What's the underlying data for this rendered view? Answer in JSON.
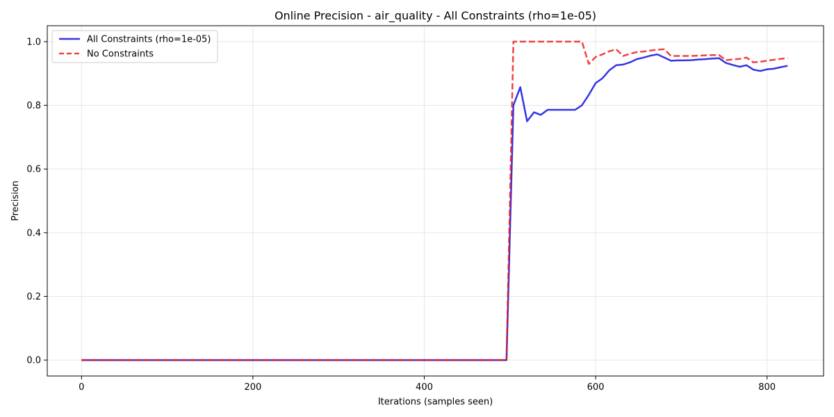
{
  "chart_data": {
    "type": "line",
    "title": "Online Precision - air_quality - All Constraints (rho=1e-05)",
    "xlabel": "Iterations (samples seen)",
    "ylabel": "Precision",
    "xlim": [
      -40,
      866
    ],
    "ylim": [
      -0.05,
      1.05
    ],
    "xticks": [
      0,
      200,
      400,
      600,
      800
    ],
    "yticks": [
      0.0,
      0.2,
      0.4,
      0.6,
      0.8,
      1.0
    ],
    "xtick_labels": [
      "0",
      "200",
      "400",
      "600",
      "800"
    ],
    "ytick_labels": [
      "0.0",
      "0.2",
      "0.4",
      "0.6",
      "0.8",
      "1.0"
    ],
    "grid": true,
    "legend_position": "upper-left",
    "series": [
      {
        "name": "All Constraints (rho=1e-05)",
        "color": "#0000dd",
        "style": "solid",
        "x": [
          0,
          496,
          504,
          512,
          520,
          528,
          536,
          544,
          552,
          560,
          568,
          576,
          584,
          592,
          600,
          608,
          616,
          624,
          632,
          640,
          648,
          656,
          664,
          672,
          680,
          688,
          696,
          704,
          712,
          720,
          728,
          736,
          744,
          752,
          760,
          768,
          776,
          784,
          792,
          800,
          808,
          816,
          824
        ],
        "y": [
          0.0,
          0.0,
          0.8,
          0.857,
          0.75,
          0.778,
          0.77,
          0.786,
          0.786,
          0.786,
          0.786,
          0.786,
          0.8,
          0.833,
          0.87,
          0.885,
          0.91,
          0.926,
          0.928,
          0.935,
          0.945,
          0.95,
          0.956,
          0.96,
          0.95,
          0.94,
          0.941,
          0.941,
          0.942,
          0.944,
          0.945,
          0.947,
          0.948,
          0.933,
          0.927,
          0.921,
          0.926,
          0.912,
          0.908,
          0.913,
          0.915,
          0.92,
          0.924
        ]
      },
      {
        "name": "No Constraints",
        "color": "#ee1111",
        "style": "dashed",
        "x": [
          0,
          496,
          504,
          512,
          520,
          528,
          536,
          544,
          552,
          560,
          568,
          576,
          584,
          592,
          600,
          608,
          616,
          624,
          632,
          640,
          648,
          656,
          664,
          672,
          680,
          688,
          696,
          704,
          712,
          720,
          728,
          736,
          744,
          752,
          760,
          768,
          776,
          784,
          792,
          800,
          808,
          816,
          824
        ],
        "y": [
          0.0,
          0.0,
          1.0,
          1.0,
          1.0,
          1.0,
          1.0,
          1.0,
          1.0,
          1.0,
          1.0,
          1.0,
          1.0,
          0.93,
          0.952,
          0.96,
          0.97,
          0.976,
          0.955,
          0.962,
          0.967,
          0.969,
          0.972,
          0.975,
          0.976,
          0.955,
          0.955,
          0.955,
          0.955,
          0.956,
          0.957,
          0.958,
          0.958,
          0.942,
          0.944,
          0.946,
          0.95,
          0.935,
          0.937,
          0.94,
          0.943,
          0.946,
          0.949
        ]
      }
    ]
  }
}
